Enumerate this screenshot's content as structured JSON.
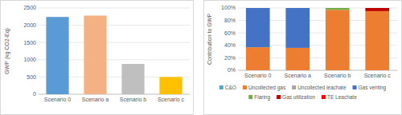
{
  "chart_data": [
    {
      "type": "bar",
      "ylabel": "GWP (kg CO2-Eq)",
      "categories": [
        "Scenario 0",
        "Scenario a",
        "Scenario b",
        "Scenario c"
      ],
      "values": [
        2240,
        2280,
        880,
        500
      ],
      "colors": [
        "#5b9bd5",
        "#f4b183",
        "#bfbfbf",
        "#ffc000"
      ],
      "ylim": [
        0,
        2500
      ],
      "yticks": [
        0,
        500,
        1000,
        1500,
        2000,
        2500
      ],
      "grid": true
    },
    {
      "type": "bar",
      "stacked": true,
      "ylabel": "Contribution to GWP",
      "legend": "bottom",
      "grid": true,
      "categories": [
        "Scenario 0",
        "Scenario a",
        "Scenario b",
        "Scenario c"
      ],
      "series": [
        {
          "name": "C&O",
          "color": "#4bacc6",
          "values": [
            0,
            0,
            0,
            0
          ]
        },
        {
          "name": "Uncollected gas",
          "color": "#ed7d31",
          "values": [
            37,
            36,
            97,
            95
          ]
        },
        {
          "name": "Uncollected leachate",
          "color": "#a5a5a5",
          "values": [
            0,
            0,
            0,
            0
          ]
        },
        {
          "name": "Gas venting",
          "color": "#4472c4",
          "values": [
            63,
            64,
            0,
            0
          ]
        },
        {
          "name": "Flaring",
          "color": "#70ad47",
          "values": [
            0,
            0,
            3,
            0
          ]
        },
        {
          "name": "Gas utilization",
          "color": "#c00000",
          "values": [
            0,
            0,
            0,
            5
          ]
        },
        {
          "name": "TE Leachate",
          "color": "#ff0000",
          "values": [
            0,
            0,
            0,
            0
          ]
        }
      ],
      "ylim": [
        0,
        100
      ],
      "yticks": [
        {
          "value": 0,
          "label": "0%"
        },
        {
          "value": 20,
          "label": "20%"
        },
        {
          "value": 40,
          "label": "40%"
        },
        {
          "value": 60,
          "label": "60%"
        },
        {
          "value": 80,
          "label": "80%"
        },
        {
          "value": 100,
          "label": "100%"
        }
      ]
    }
  ]
}
